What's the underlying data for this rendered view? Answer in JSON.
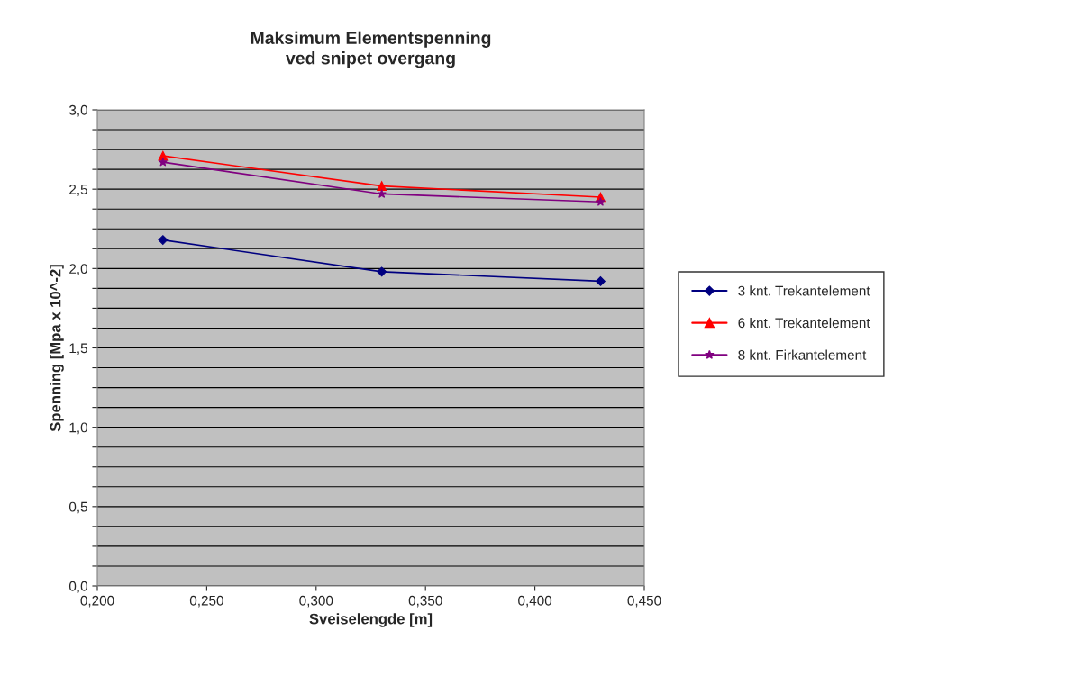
{
  "chart_data": {
    "type": "line",
    "title": "Maksimum Elementspenning\nved snipet overgang",
    "xlabel": "Sveiselengde [m]",
    "ylabel": "Spenning [Mpa x 10^-2]",
    "x": [
      0.23,
      0.33,
      0.43
    ],
    "series": [
      {
        "name": "3 knt. Trekantelement",
        "color": "#000080",
        "marker": "diamond",
        "values": [
          2.18,
          1.98,
          1.92
        ]
      },
      {
        "name": "6 knt. Trekantelement",
        "color": "#ff0000",
        "marker": "triangle",
        "values": [
          2.71,
          2.52,
          2.45
        ]
      },
      {
        "name": "8 knt. Firkantelement",
        "color": "#800080",
        "marker": "star",
        "values": [
          2.67,
          2.47,
          2.42
        ]
      }
    ],
    "xlim": [
      0.2,
      0.45
    ],
    "xticks": [
      {
        "value": 0.2,
        "label": "0,200"
      },
      {
        "value": 0.25,
        "label": "0,250"
      },
      {
        "value": 0.3,
        "label": "0,300"
      },
      {
        "value": 0.35,
        "label": "0,350"
      },
      {
        "value": 0.4,
        "label": "0,400"
      },
      {
        "value": 0.45,
        "label": "0,450"
      }
    ],
    "ylim": [
      0,
      3
    ],
    "yticks": [
      {
        "value": 0,
        "label": "0,0"
      },
      {
        "value": 0.125,
        "label": null
      },
      {
        "value": 0.25,
        "label": null
      },
      {
        "value": 0.375,
        "label": null
      },
      {
        "value": 0.5,
        "label": "0,5"
      },
      {
        "value": 0.625,
        "label": null
      },
      {
        "value": 0.75,
        "label": null
      },
      {
        "value": 0.875,
        "label": null
      },
      {
        "value": 1,
        "label": "1,0"
      },
      {
        "value": 1.125,
        "label": null
      },
      {
        "value": 1.25,
        "label": null
      },
      {
        "value": 1.375,
        "label": null
      },
      {
        "value": 1.5,
        "label": "1,5"
      },
      {
        "value": 1.625,
        "label": null
      },
      {
        "value": 1.75,
        "label": null
      },
      {
        "value": 1.875,
        "label": null
      },
      {
        "value": 2,
        "label": "2,0"
      },
      {
        "value": 2.125,
        "label": null
      },
      {
        "value": 2.25,
        "label": null
      },
      {
        "value": 2.375,
        "label": null
      },
      {
        "value": 2.5,
        "label": "2,5"
      },
      {
        "value": 2.625,
        "label": null
      },
      {
        "value": 2.75,
        "label": null
      },
      {
        "value": 2.875,
        "label": null
      },
      {
        "value": 3,
        "label": "3,0"
      }
    ],
    "grid": "y",
    "legend": "right",
    "line_style": "solid"
  }
}
